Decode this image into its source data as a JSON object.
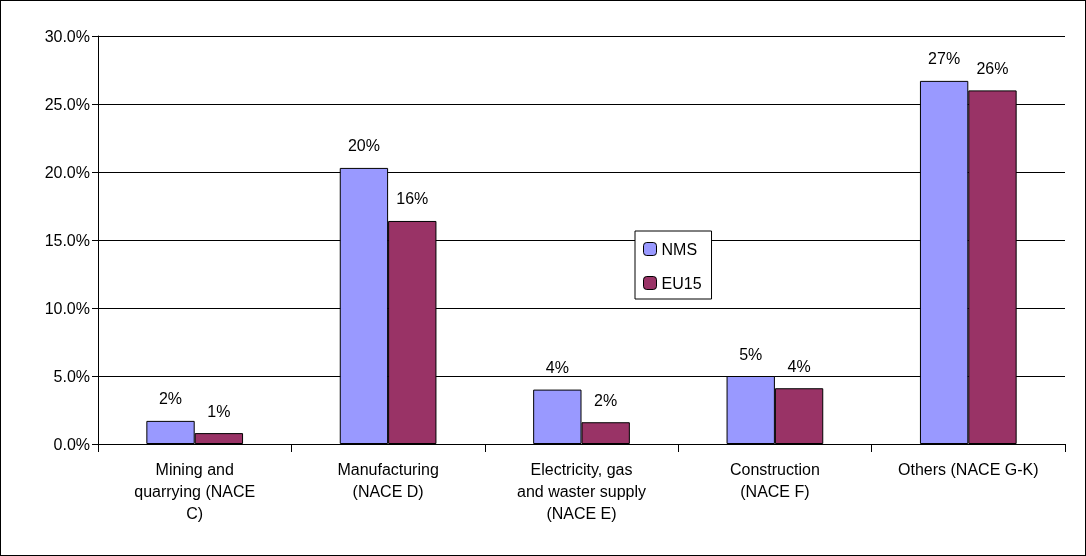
{
  "chart_data": {
    "type": "bar",
    "categories": [
      "Mining and quarrying (NACE C)",
      "Manufacturing (NACE D)",
      "Electricity, gas and waster supply (NACE E)",
      "Construction (NACE F)",
      "Others (NACE G-K)"
    ],
    "series": [
      {
        "name": "NMS",
        "color": "#9999ff",
        "values": [
          1.7,
          20.3,
          4.0,
          5.0,
          26.7
        ],
        "value_labels": [
          "2%",
          "20%",
          "4%",
          "5%",
          "27%"
        ]
      },
      {
        "name": "EU15",
        "color": "#993366",
        "values": [
          0.8,
          16.4,
          1.6,
          4.1,
          26.0
        ],
        "value_labels": [
          "1%",
          "16%",
          "2%",
          "4%",
          "26%"
        ]
      }
    ],
    "ylim": [
      0,
      30
    ],
    "yticks": [
      {
        "value": 0,
        "label": "0.0%"
      },
      {
        "value": 5,
        "label": "5.0%"
      },
      {
        "value": 10,
        "label": "10.0%"
      },
      {
        "value": 15,
        "label": "15.0%"
      },
      {
        "value": 20,
        "label": "20.0%"
      },
      {
        "value": 25,
        "label": "25.0%"
      },
      {
        "value": 30,
        "label": "30.0%"
      }
    ],
    "grid": "y",
    "legend": "center"
  }
}
